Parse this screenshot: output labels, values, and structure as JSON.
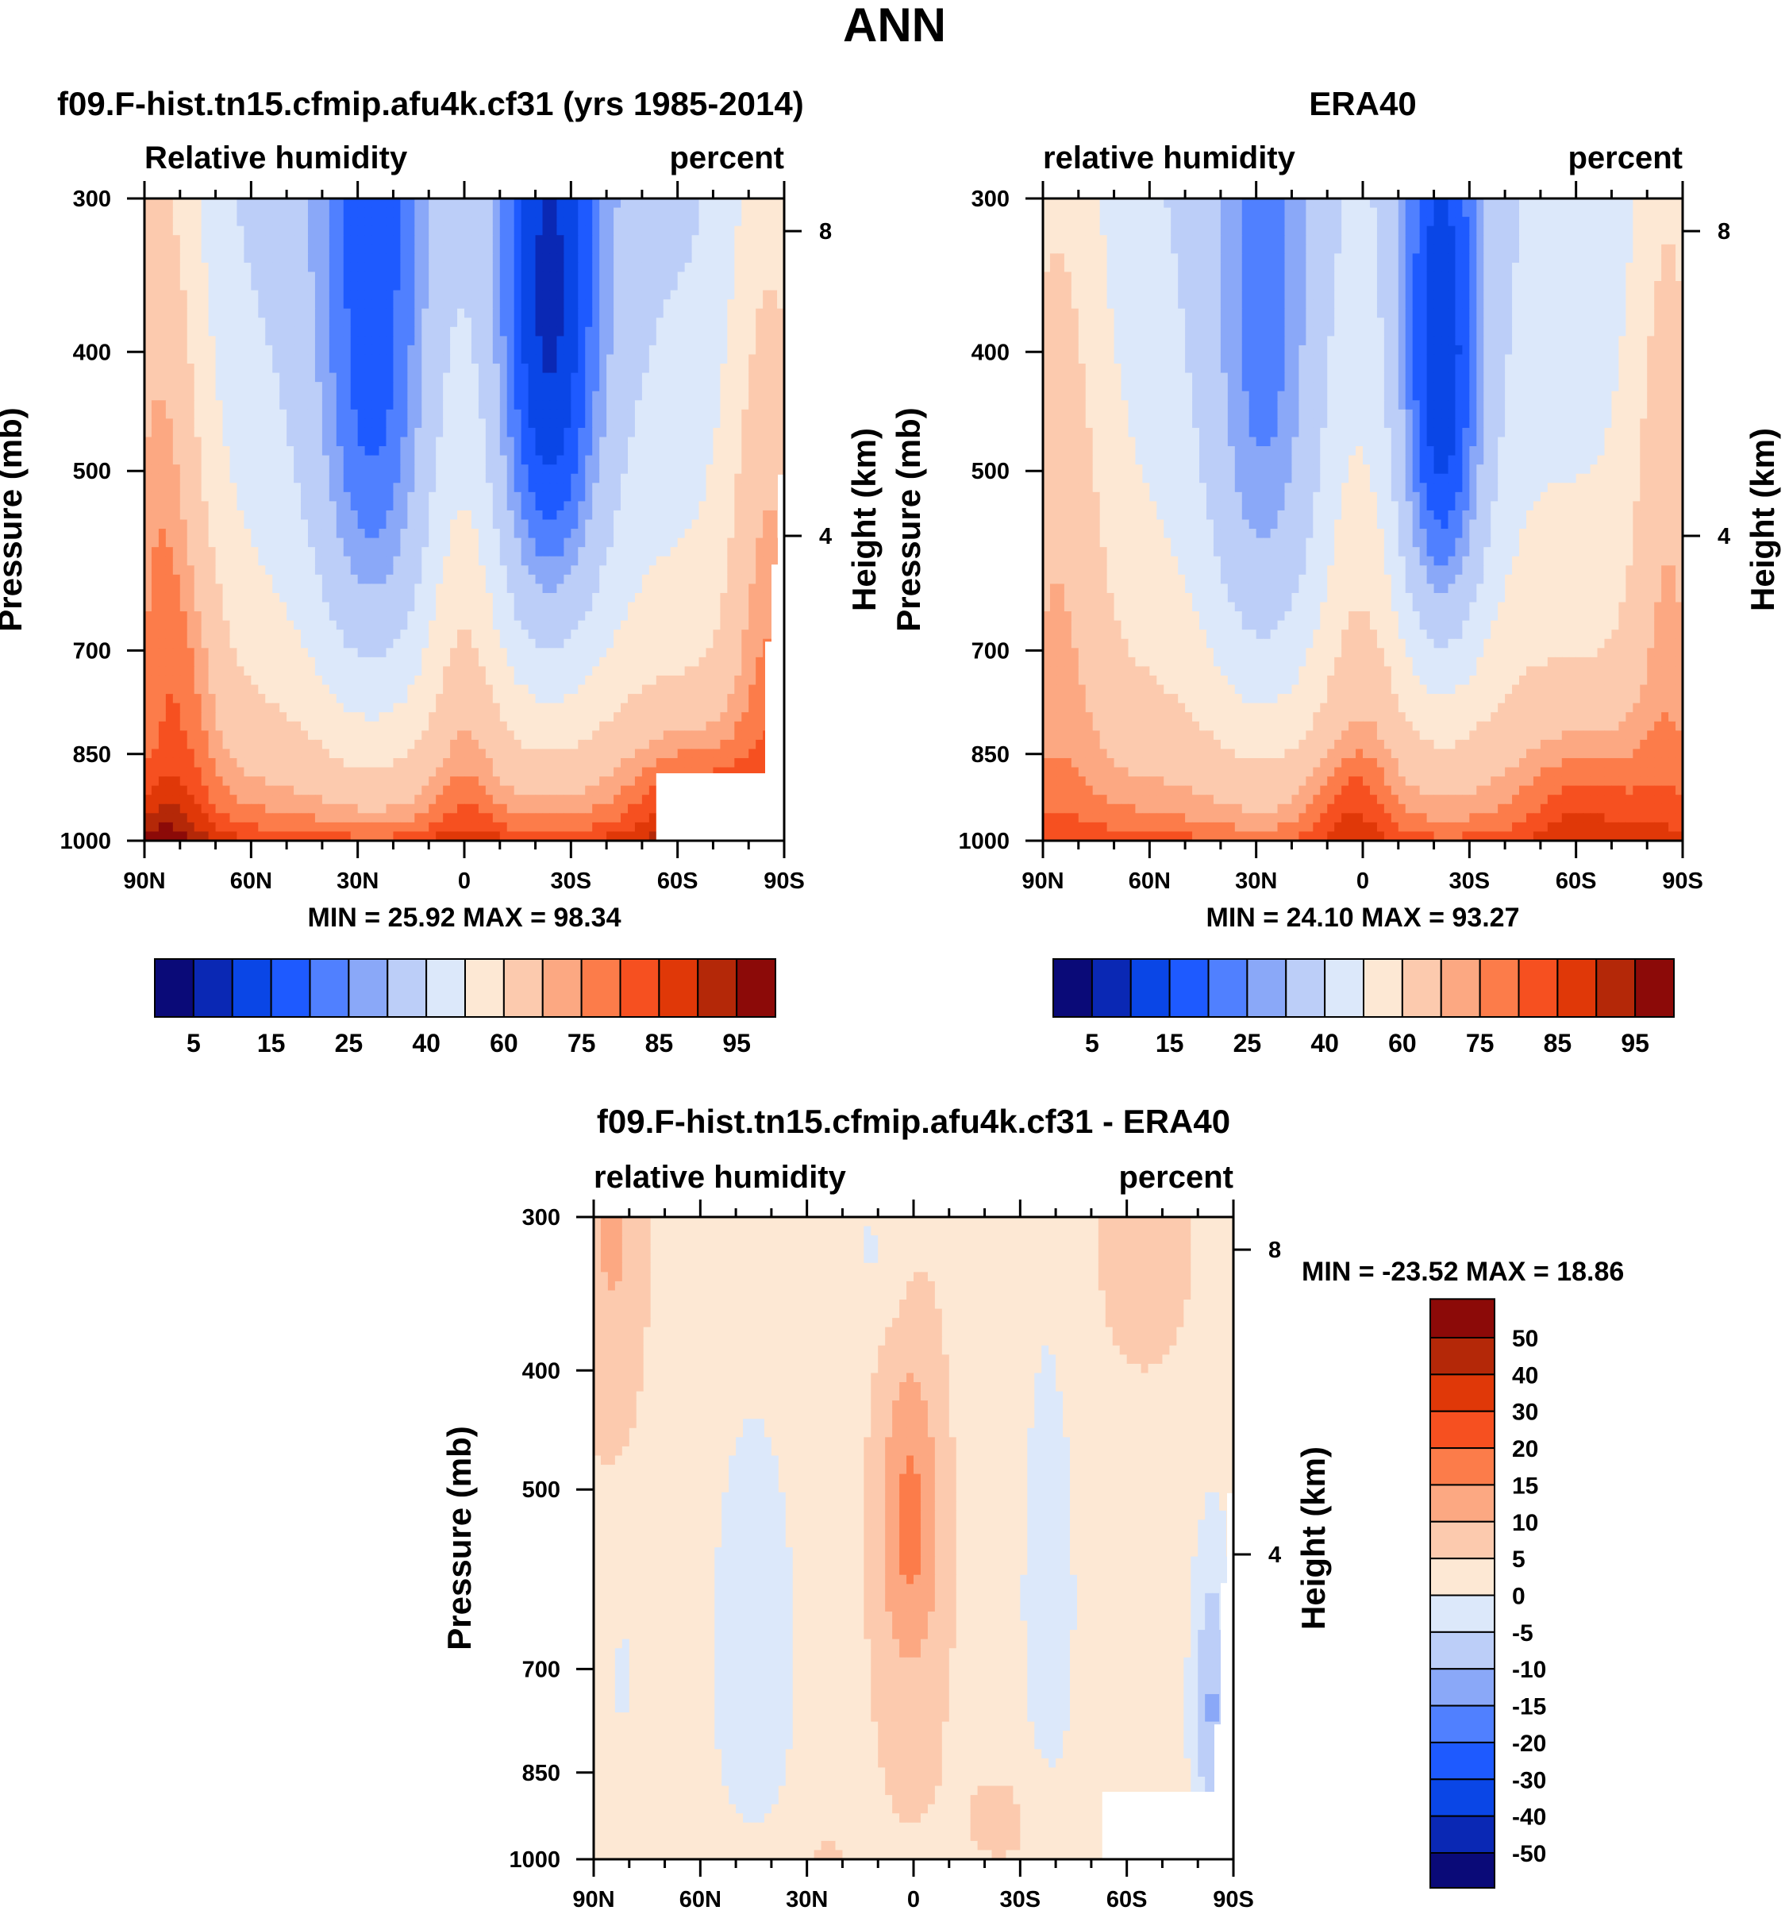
{
  "title": "ANN",
  "chart_data": [
    {
      "type": "heatmap",
      "panel": "model",
      "title": "f09.F-hist.tn15.cfmip.afu4k.cf31 (yrs 1985-2014)",
      "left_label": "Relative humidity",
      "right_label": "percent",
      "ylabel": "Pressure (mb)",
      "ylabel_right": "Height (km)",
      "x_ticks": [
        "90N",
        "60N",
        "30N",
        "0",
        "30S",
        "60S",
        "90S"
      ],
      "y_ticks": [
        "300",
        "400",
        "500",
        "700",
        "850",
        "1000"
      ],
      "y_ticks_right": [
        "8",
        "4"
      ],
      "xlim": [
        90,
        -90
      ],
      "ylim": [
        1000,
        300
      ],
      "stats_text": "MIN =  25.92  MAX =  98.34",
      "min": 25.92,
      "max": 98.34,
      "colorbar": {
        "orientation": "horizontal",
        "labels": [
          "5",
          "15",
          "25",
          "40",
          "60",
          "75",
          "85",
          "95"
        ],
        "levels": [
          5,
          10,
          15,
          20,
          25,
          30,
          40,
          50,
          60,
          70,
          75,
          80,
          85,
          90,
          95
        ]
      }
    },
    {
      "type": "heatmap",
      "panel": "obs",
      "title": "ERA40",
      "left_label": "relative humidity",
      "right_label": "percent",
      "ylabel": "Pressure (mb)",
      "ylabel_right": "Height (km)",
      "x_ticks": [
        "90N",
        "60N",
        "30N",
        "0",
        "30S",
        "60S",
        "90S"
      ],
      "y_ticks": [
        "300",
        "400",
        "500",
        "700",
        "850",
        "1000"
      ],
      "y_ticks_right": [
        "8",
        "4"
      ],
      "xlim": [
        90,
        -90
      ],
      "ylim": [
        1000,
        300
      ],
      "stats_text": "MIN =  24.10  MAX =  93.27",
      "min": 24.1,
      "max": 93.27,
      "colorbar": {
        "orientation": "horizontal",
        "labels": [
          "5",
          "15",
          "25",
          "40",
          "60",
          "75",
          "85",
          "95"
        ],
        "levels": [
          5,
          10,
          15,
          20,
          25,
          30,
          40,
          50,
          60,
          70,
          75,
          80,
          85,
          90,
          95
        ]
      }
    },
    {
      "type": "heatmap",
      "panel": "diff",
      "title": "f09.F-hist.tn15.cfmip.afu4k.cf31 - ERA40",
      "left_label": "relative humidity",
      "right_label": "percent",
      "ylabel": "Pressure (mb)",
      "ylabel_right": "Height (km)",
      "x_ticks": [
        "90N",
        "60N",
        "30N",
        "0",
        "30S",
        "60S",
        "90S"
      ],
      "y_ticks": [
        "300",
        "400",
        "500",
        "700",
        "850",
        "1000"
      ],
      "y_ticks_right": [
        "8",
        "4"
      ],
      "xlim": [
        90,
        -90
      ],
      "ylim": [
        1000,
        300
      ],
      "stats_text": "MIN = -23.52  MAX =  18.86",
      "min": -23.52,
      "max": 18.86,
      "colorbar": {
        "orientation": "vertical",
        "labels": [
          "50",
          "40",
          "30",
          "20",
          "15",
          "10",
          "5",
          "0",
          "-5",
          "-10",
          "-15",
          "-20",
          "-30",
          "-40",
          "-50"
        ],
        "levels": [
          -50,
          -40,
          -30,
          -20,
          -15,
          -10,
          -5,
          0,
          5,
          10,
          15,
          20,
          30,
          40,
          50
        ]
      }
    }
  ],
  "colors": {
    "abs_palette": [
      "#0a0a78",
      "#0a28b4",
      "#0a46e6",
      "#1e5aff",
      "#5080ff",
      "#8aa8f8",
      "#bccef8",
      "#dce8fa",
      "#fde8d4",
      "#fccaae",
      "#fca882",
      "#fc7c4a",
      "#f65020",
      "#e03808",
      "#b42808",
      "#8c0a08"
    ],
    "diff_palette": [
      "#0a0a78",
      "#0a28b4",
      "#0a46e6",
      "#1e5aff",
      "#5080ff",
      "#8aa8f8",
      "#bccef8",
      "#dce8fa",
      "#fde8d4",
      "#fccaae",
      "#fca882",
      "#fc7c4a",
      "#f65020",
      "#e03808",
      "#b42808",
      "#8c0a08"
    ],
    "missing": "#ffffff"
  }
}
